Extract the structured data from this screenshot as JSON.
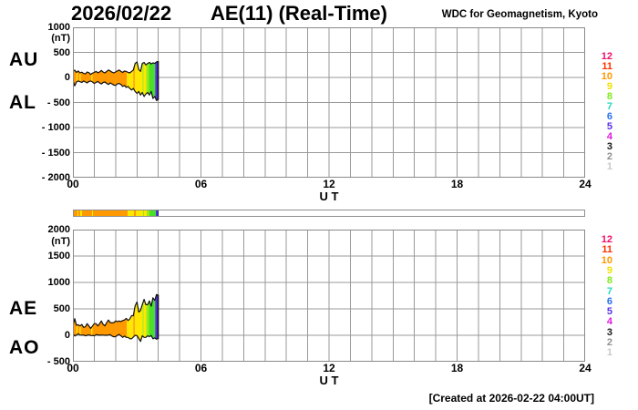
{
  "header": {
    "date": "2026/02/22",
    "title": "AE(11) (Real-Time)",
    "source": "WDC for Geomagnetism, Kyoto"
  },
  "footer": {
    "created": "[Created at 2026-02-22 04:00UT]"
  },
  "x_axis": {
    "label": "U T",
    "ticks": [
      "00",
      "06",
      "12",
      "18",
      "24"
    ],
    "tick_hours": [
      0,
      6,
      12,
      18,
      24
    ]
  },
  "panels": {
    "top": {
      "left_labels": [
        "AU",
        "AL"
      ],
      "unit": "(nT)",
      "y_ticks": [
        "1000",
        "500",
        "0",
        "- 500",
        "- 1000",
        "- 1500",
        "- 2000"
      ],
      "y_values": [
        1000,
        500,
        0,
        -500,
        -1000,
        -1500,
        -2000
      ],
      "ylim": [
        -2000,
        1000
      ]
    },
    "bottom": {
      "left_labels": [
        "AE",
        "AO"
      ],
      "unit": "(nT)",
      "y_ticks": [
        "2000",
        "1500",
        "1000",
        "500",
        "0",
        "- 500"
      ],
      "y_values": [
        2000,
        1500,
        1000,
        500,
        0,
        -500
      ],
      "ylim": [
        -500,
        2000
      ]
    }
  },
  "stations": {
    "numbers": [
      12,
      11,
      10,
      9,
      8,
      7,
      6,
      5,
      4,
      3,
      2,
      1
    ],
    "colors": {
      "12": "#F01068",
      "11": "#FF3000",
      "10": "#FF9900",
      "9": "#F0E000",
      "8": "#80E818",
      "7": "#20D8C0",
      "6": "#2870F0",
      "5": "#5830E8",
      "4": "#E018E0",
      "3": "#181818",
      "2": "#909090",
      "1": "#C8C8C8"
    }
  },
  "chart_data": {
    "type": "area",
    "title": "AE(11) (Real-Time)",
    "date": "2026/02/22",
    "xlabel": "U T",
    "ylabel": "(nT)",
    "x_range_hours": [
      0,
      24
    ],
    "x_tick_hours": [
      0,
      6,
      12,
      18,
      24
    ],
    "grid": true,
    "data_end_minute": 240,
    "time_minutes": [
      0,
      5,
      10,
      15,
      20,
      25,
      30,
      35,
      40,
      45,
      50,
      55,
      60,
      65,
      70,
      75,
      80,
      85,
      90,
      95,
      100,
      105,
      110,
      115,
      120,
      125,
      130,
      135,
      140,
      145,
      150,
      155,
      160,
      165,
      170,
      175,
      180,
      185,
      190,
      195,
      200,
      205,
      210,
      215,
      220,
      225,
      230,
      235,
      240
    ],
    "series": [
      {
        "name": "AU",
        "panel": "top",
        "values": [
          120,
          145,
          100,
          130,
          90,
          105,
          80,
          70,
          110,
          95,
          60,
          85,
          100,
          120,
          95,
          110,
          140,
          105,
          90,
          120,
          150,
          130,
          105,
          90,
          110,
          130,
          150,
          120,
          100,
          130,
          120,
          100,
          90,
          120,
          150,
          280,
          310,
          160,
          120,
          280,
          300,
          250,
          280,
          300,
          270,
          290,
          280,
          310,
          320
        ]
      },
      {
        "name": "AL",
        "panel": "top",
        "values": [
          -60,
          -170,
          -90,
          -70,
          -85,
          -100,
          -70,
          -90,
          -110,
          -80,
          -70,
          -90,
          -120,
          -100,
          -80,
          -110,
          -130,
          -100,
          -90,
          -120,
          -140,
          -110,
          -130,
          -150,
          -160,
          -130,
          -120,
          -140,
          -180,
          -160,
          -200,
          -180,
          -220,
          -250,
          -220,
          -280,
          -320,
          -280,
          -350,
          -300,
          -380,
          -330,
          -300,
          -350,
          -280,
          -420,
          -380,
          -460,
          -440
        ]
      },
      {
        "name": "AE",
        "panel": "bottom",
        "values": [
          180,
          315,
          190,
          200,
          175,
          205,
          150,
          160,
          220,
          175,
          130,
          175,
          220,
          220,
          175,
          220,
          270,
          205,
          180,
          240,
          290,
          240,
          235,
          240,
          270,
          260,
          270,
          260,
          280,
          290,
          320,
          280,
          310,
          370,
          370,
          560,
          630,
          440,
          470,
          580,
          680,
          580,
          580,
          650,
          550,
          710,
          660,
          770,
          760
        ]
      },
      {
        "name": "AO",
        "panel": "bottom",
        "values": [
          30,
          -13,
          5,
          30,
          3,
          3,
          5,
          -10,
          0,
          8,
          -5,
          -3,
          -10,
          10,
          8,
          0,
          5,
          3,
          0,
          0,
          5,
          10,
          -13,
          -30,
          -25,
          0,
          15,
          -10,
          -40,
          -15,
          -40,
          -40,
          -65,
          -65,
          -35,
          0,
          -5,
          -60,
          -115,
          -10,
          -40,
          -40,
          -10,
          -25,
          -5,
          -65,
          -50,
          -75,
          -60
        ]
      }
    ],
    "panel_defs": [
      {
        "id": "top",
        "name": "AU/AL",
        "ylim": [
          -2000,
          1000
        ],
        "upper": "AU",
        "lower": "AL"
      },
      {
        "id": "bottom",
        "name": "AE/AO",
        "ylim": [
          -500,
          2000
        ],
        "upper": "AE",
        "lower": "AO"
      }
    ],
    "fill_segments": [
      {
        "from": 0,
        "to": 10,
        "color": "#FF9900"
      },
      {
        "from": 10,
        "to": 13,
        "color": "#FFE800"
      },
      {
        "from": 13,
        "to": 19,
        "color": "#FF9900"
      },
      {
        "from": 19,
        "to": 22,
        "color": "#FFE800"
      },
      {
        "from": 22,
        "to": 52,
        "color": "#FF9900"
      },
      {
        "from": 52,
        "to": 55,
        "color": "#FFE800"
      },
      {
        "from": 55,
        "to": 152,
        "color": "#FF9900"
      },
      {
        "from": 152,
        "to": 170,
        "color": "#FFE800"
      },
      {
        "from": 170,
        "to": 174,
        "color": "#FF9900"
      },
      {
        "from": 174,
        "to": 196,
        "color": "#FFE800"
      },
      {
        "from": 196,
        "to": 199,
        "color": "#99E818"
      },
      {
        "from": 199,
        "to": 206,
        "color": "#FFE800"
      },
      {
        "from": 206,
        "to": 214,
        "color": "#99E818"
      },
      {
        "from": 214,
        "to": 231,
        "color": "#48E028"
      },
      {
        "from": 231,
        "to": 237,
        "color": "#5830E8"
      },
      {
        "from": 237,
        "to": 240,
        "color": "#202060"
      }
    ],
    "availability_bar": {
      "colored_until_minute": 240,
      "uses": "fill_segments",
      "rest_color": "#FFFFFF"
    }
  }
}
